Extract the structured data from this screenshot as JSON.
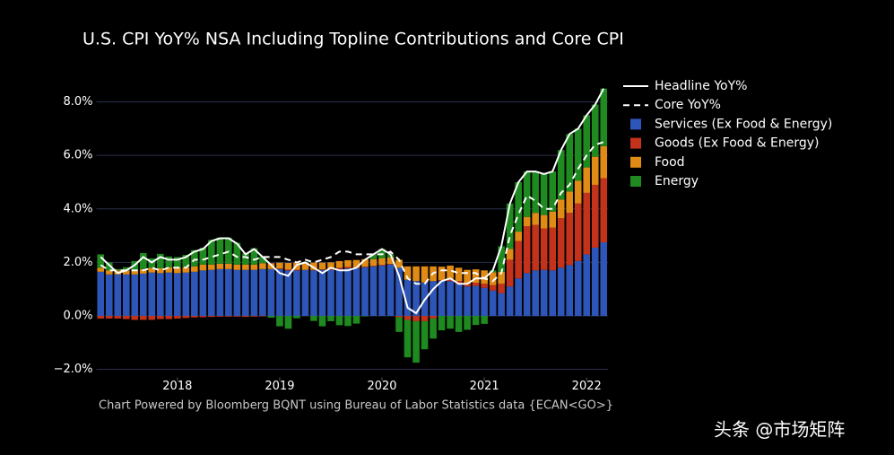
{
  "chart_data": {
    "type": "bar",
    "stacked": true,
    "title": "U.S. CPI YoY% NSA Including Topline Contributions and Core CPI",
    "footnote": "Chart Powered by Bloomberg BQNT using Bureau of Labor Statistics data    {ECAN<GO>}",
    "watermark": "头条 @市场矩阵",
    "x": [
      "2017-04",
      "2017-05",
      "2017-06",
      "2017-07",
      "2017-08",
      "2017-09",
      "2017-10",
      "2017-11",
      "2017-12",
      "2018-01",
      "2018-02",
      "2018-03",
      "2018-04",
      "2018-05",
      "2018-06",
      "2018-07",
      "2018-08",
      "2018-09",
      "2018-10",
      "2018-11",
      "2018-12",
      "2019-01",
      "2019-02",
      "2019-03",
      "2019-04",
      "2019-05",
      "2019-06",
      "2019-07",
      "2019-08",
      "2019-09",
      "2019-10",
      "2019-11",
      "2019-12",
      "2020-01",
      "2020-02",
      "2020-03",
      "2020-04",
      "2020-05",
      "2020-06",
      "2020-07",
      "2020-08",
      "2020-09",
      "2020-10",
      "2020-11",
      "2020-12",
      "2021-01",
      "2021-02",
      "2021-03",
      "2021-04",
      "2021-05",
      "2021-06",
      "2021-07",
      "2021-08",
      "2021-09",
      "2021-10",
      "2021-11",
      "2021-12",
      "2022-01",
      "2022-02",
      "2022-03"
    ],
    "xticks": [
      {
        "value": "2018-01",
        "label": "2018"
      },
      {
        "value": "2019-01",
        "label": "2019"
      },
      {
        "value": "2020-01",
        "label": "2020"
      },
      {
        "value": "2021-01",
        "label": "2021"
      },
      {
        "value": "2022-01",
        "label": "2022"
      }
    ],
    "ylim": [
      -2.3,
      8.6
    ],
    "yticks": [
      {
        "value": -2,
        "label": "−2.0%"
      },
      {
        "value": 0,
        "label": "0.0%"
      },
      {
        "value": 2,
        "label": "2.0%"
      },
      {
        "value": 4,
        "label": "4.0%"
      },
      {
        "value": 6,
        "label": "6.0%"
      },
      {
        "value": 8,
        "label": "8.0%"
      }
    ],
    "grid": true,
    "legend": "right",
    "series": [
      {
        "name": "Headline YoY%",
        "type": "line",
        "color": "#ffffff",
        "dash": false,
        "values": [
          2.2,
          1.9,
          1.6,
          1.7,
          1.9,
          2.2,
          2.0,
          2.2,
          2.1,
          2.1,
          2.2,
          2.4,
          2.5,
          2.8,
          2.9,
          2.9,
          2.7,
          2.3,
          2.5,
          2.2,
          1.9,
          1.6,
          1.5,
          1.9,
          2.0,
          1.8,
          1.6,
          1.8,
          1.7,
          1.7,
          1.8,
          2.1,
          2.3,
          2.5,
          2.3,
          1.5,
          0.3,
          0.1,
          0.6,
          1.0,
          1.3,
          1.4,
          1.2,
          1.2,
          1.4,
          1.4,
          1.7,
          2.6,
          4.2,
          5.0,
          5.4,
          5.4,
          5.3,
          5.4,
          6.2,
          6.8,
          7.0,
          7.5,
          7.9,
          8.5
        ]
      },
      {
        "name": "Core YoY%",
        "type": "line",
        "color": "#ffffff",
        "dash": true,
        "values": [
          1.9,
          1.7,
          1.7,
          1.7,
          1.7,
          1.7,
          1.8,
          1.7,
          1.8,
          1.8,
          1.8,
          2.1,
          2.1,
          2.2,
          2.3,
          2.4,
          2.2,
          2.2,
          2.1,
          2.2,
          2.2,
          2.2,
          2.1,
          2.0,
          2.1,
          2.0,
          2.1,
          2.2,
          2.4,
          2.4,
          2.3,
          2.3,
          2.3,
          2.3,
          2.4,
          2.1,
          1.4,
          1.2,
          1.2,
          1.6,
          1.7,
          1.7,
          1.6,
          1.6,
          1.6,
          1.4,
          1.3,
          1.6,
          3.0,
          3.8,
          4.5,
          4.3,
          4.0,
          4.0,
          4.6,
          4.9,
          5.5,
          6.0,
          6.4,
          6.5
        ]
      },
      {
        "name": "Services (Ex Food & Energy)",
        "type": "bar",
        "color": "#2e56b8",
        "values": [
          1.65,
          1.55,
          1.55,
          1.55,
          1.55,
          1.58,
          1.62,
          1.6,
          1.62,
          1.6,
          1.62,
          1.65,
          1.7,
          1.72,
          1.75,
          1.75,
          1.72,
          1.72,
          1.72,
          1.75,
          1.75,
          1.75,
          1.7,
          1.7,
          1.72,
          1.7,
          1.72,
          1.72,
          1.75,
          1.78,
          1.78,
          1.82,
          1.85,
          1.88,
          1.92,
          1.8,
          1.35,
          1.3,
          1.25,
          1.3,
          1.32,
          1.3,
          1.2,
          1.1,
          1.12,
          1.05,
          0.95,
          0.85,
          1.1,
          1.4,
          1.6,
          1.7,
          1.72,
          1.7,
          1.8,
          1.9,
          2.05,
          2.3,
          2.55,
          2.75
        ]
      },
      {
        "name": "Goods (Ex Food & Energy)",
        "type": "bar",
        "color": "#c3321b",
        "values": [
          -0.1,
          -0.1,
          -0.1,
          -0.12,
          -0.15,
          -0.15,
          -0.15,
          -0.12,
          -0.12,
          -0.1,
          -0.08,
          -0.06,
          -0.05,
          -0.04,
          -0.03,
          -0.03,
          -0.03,
          -0.04,
          -0.03,
          -0.02,
          0.0,
          0.02,
          0.03,
          0.02,
          0.0,
          0.02,
          0.02,
          0.03,
          0.05,
          0.05,
          0.03,
          0.02,
          0.02,
          0.03,
          0.02,
          -0.05,
          -0.15,
          -0.2,
          -0.2,
          -0.1,
          0.02,
          0.08,
          0.1,
          0.12,
          0.12,
          0.15,
          0.2,
          0.35,
          1.0,
          1.4,
          1.75,
          1.7,
          1.55,
          1.6,
          1.85,
          1.95,
          2.15,
          2.3,
          2.35,
          2.4
        ]
      },
      {
        "name": "Food",
        "type": "bar",
        "color": "#e08b15",
        "values": [
          0.15,
          0.15,
          0.15,
          0.15,
          0.15,
          0.17,
          0.18,
          0.18,
          0.2,
          0.2,
          0.2,
          0.2,
          0.22,
          0.2,
          0.2,
          0.2,
          0.2,
          0.2,
          0.2,
          0.22,
          0.22,
          0.22,
          0.25,
          0.27,
          0.27,
          0.27,
          0.25,
          0.25,
          0.25,
          0.25,
          0.28,
          0.28,
          0.25,
          0.25,
          0.25,
          0.3,
          0.5,
          0.55,
          0.6,
          0.55,
          0.5,
          0.5,
          0.5,
          0.5,
          0.5,
          0.5,
          0.48,
          0.45,
          0.4,
          0.35,
          0.35,
          0.45,
          0.5,
          0.6,
          0.7,
          0.8,
          0.85,
          0.95,
          1.05,
          1.2
        ]
      },
      {
        "name": "Energy",
        "type": "bar",
        "color": "#1f8a1f",
        "values": [
          0.5,
          0.3,
          0.05,
          0.12,
          0.35,
          0.6,
          0.35,
          0.54,
          0.4,
          0.4,
          0.46,
          0.61,
          0.63,
          0.92,
          0.98,
          0.98,
          0.81,
          0.42,
          0.61,
          0.25,
          -0.07,
          -0.39,
          -0.48,
          -0.09,
          0.01,
          -0.19,
          -0.39,
          -0.2,
          -0.35,
          -0.38,
          -0.29,
          -0.02,
          0.18,
          0.34,
          0.11,
          -0.55,
          -1.4,
          -1.55,
          -1.05,
          -0.75,
          -0.54,
          -0.48,
          -0.6,
          -0.52,
          -0.34,
          -0.3,
          0.07,
          0.95,
          1.7,
          1.85,
          1.7,
          1.55,
          1.53,
          1.5,
          1.85,
          2.15,
          1.95,
          1.95,
          1.95,
          2.15
        ]
      }
    ]
  }
}
